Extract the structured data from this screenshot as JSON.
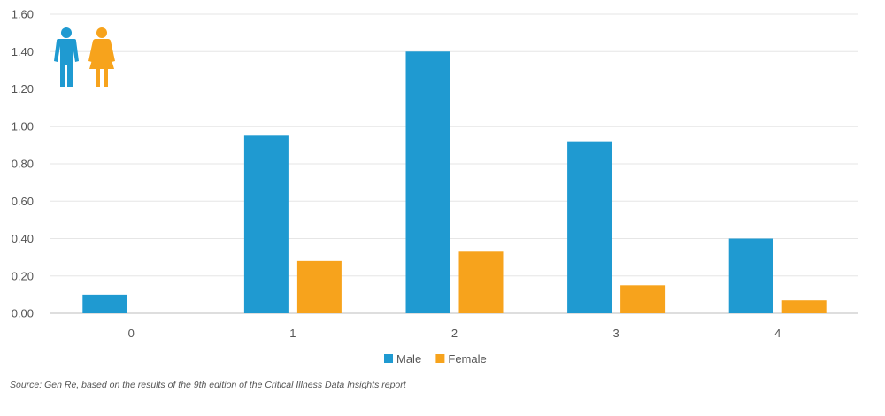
{
  "chart_data": {
    "type": "bar",
    "categories": [
      "0",
      "1",
      "2",
      "3",
      "4"
    ],
    "series": [
      {
        "name": "Male",
        "color": "#1f9ad1",
        "values": [
          0.1,
          0.95,
          1.4,
          0.92,
          0.4
        ]
      },
      {
        "name": "Female",
        "color": "#f7a31c",
        "values": [
          0.0,
          0.28,
          0.33,
          0.15,
          0.07
        ]
      }
    ],
    "yticks": [
      "0.00",
      "0.20",
      "0.40",
      "0.60",
      "0.80",
      "1.00",
      "1.20",
      "1.40",
      "1.60"
    ],
    "ylim": [
      0,
      1.6
    ],
    "grid": true,
    "legend_position": "bottom-center",
    "title": "",
    "xlabel": "",
    "ylabel": "",
    "icons": [
      "male-icon",
      "female-icon"
    ]
  },
  "source_note": "Source: Gen Re, based on the results of the 9th edition of the Critical Illness Data Insights report"
}
